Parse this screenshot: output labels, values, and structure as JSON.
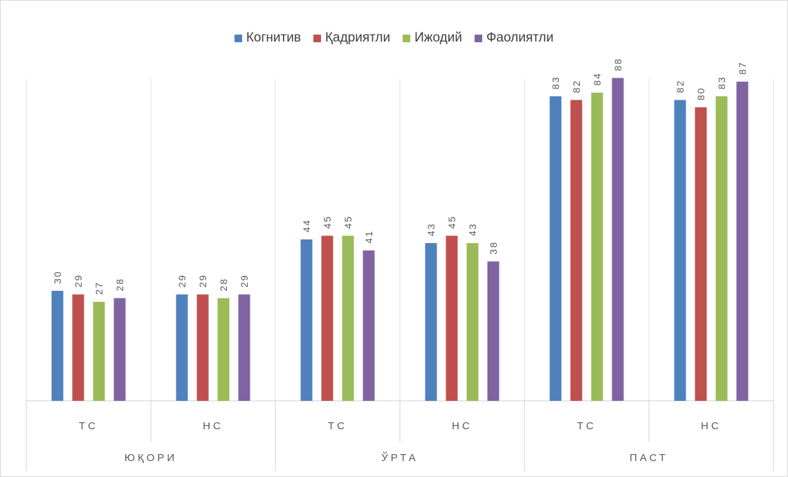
{
  "chart_data": {
    "type": "bar",
    "groups": [
      {
        "label": "ЮҚОРИ",
        "categories": [
          "ТС",
          "НС"
        ]
      },
      {
        "label": "ЎРТА",
        "categories": [
          "ТС",
          "НС"
        ]
      },
      {
        "label": "ПАСТ",
        "categories": [
          "ТС",
          "НС"
        ]
      }
    ],
    "series": [
      {
        "name": "Когнитив",
        "color": "#4f81bd",
        "values": [
          30,
          29,
          44,
          43,
          83,
          82
        ]
      },
      {
        "name": "Қадриятли",
        "color": "#c0504d",
        "values": [
          29,
          29,
          45,
          45,
          82,
          80
        ]
      },
      {
        "name": "Ижодий",
        "color": "#9bbb59",
        "values": [
          27,
          28,
          45,
          43,
          84,
          83
        ]
      },
      {
        "name": "Фаолиятли",
        "color": "#8064a2",
        "values": [
          28,
          29,
          41,
          38,
          88,
          87
        ]
      }
    ],
    "ylim": [
      0,
      100
    ],
    "grid": false,
    "legend_position": "top",
    "data_labels": true
  }
}
